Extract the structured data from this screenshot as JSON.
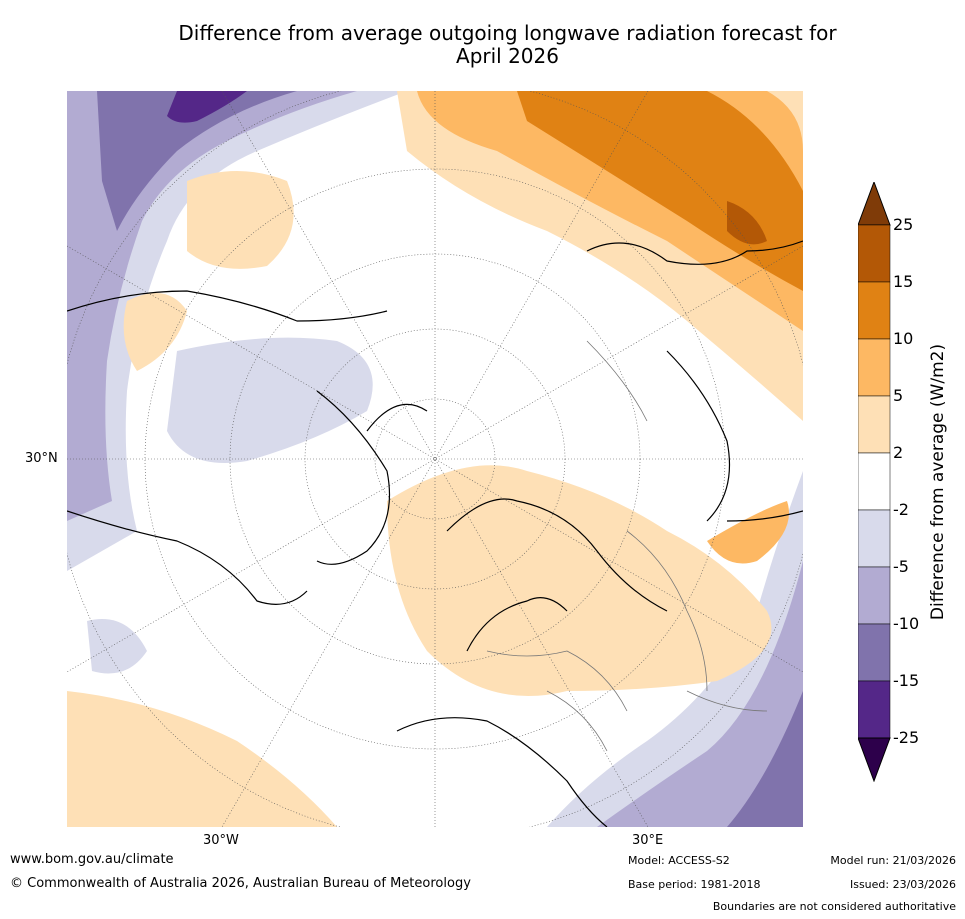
{
  "title_line1": "Difference from average outgoing longwave radiation forecast for",
  "title_line2": "April 2026",
  "axis_labels": {
    "lat_30n": "30°N",
    "lon_30w": "30°W",
    "lon_30e": "30°E"
  },
  "colorbar": {
    "title": "Difference from average (W/m2)",
    "ticks": [
      "25",
      "15",
      "10",
      "5",
      "2",
      "-2",
      "-5",
      "-10",
      "-15",
      "-25"
    ],
    "colors": {
      "above_25": "#7f3b08",
      "b15_25": "#b35806",
      "b10_15": "#e08214",
      "b5_10": "#fdb863",
      "b2_5": "#fee0b6",
      "neutral": "#ffffff",
      "bm5_m2": "#d8daeb",
      "bm10_m5": "#b2abd2",
      "bm15_m10": "#8073ac",
      "bm25_m15": "#542788",
      "below_m25": "#2d004b"
    }
  },
  "footer": {
    "website": "www.bom.gov.au/climate",
    "copyright": "© Commonwealth of Australia 2026, Australian Bureau of Meteorology",
    "model": "Model: ACCESS-S2",
    "base_period": "Base period: 1981-2018",
    "model_run": "Model run: 21/03/2026",
    "issued": "Issued: 23/03/2026",
    "disclaimer": "Boundaries are not considered authoritative"
  }
}
